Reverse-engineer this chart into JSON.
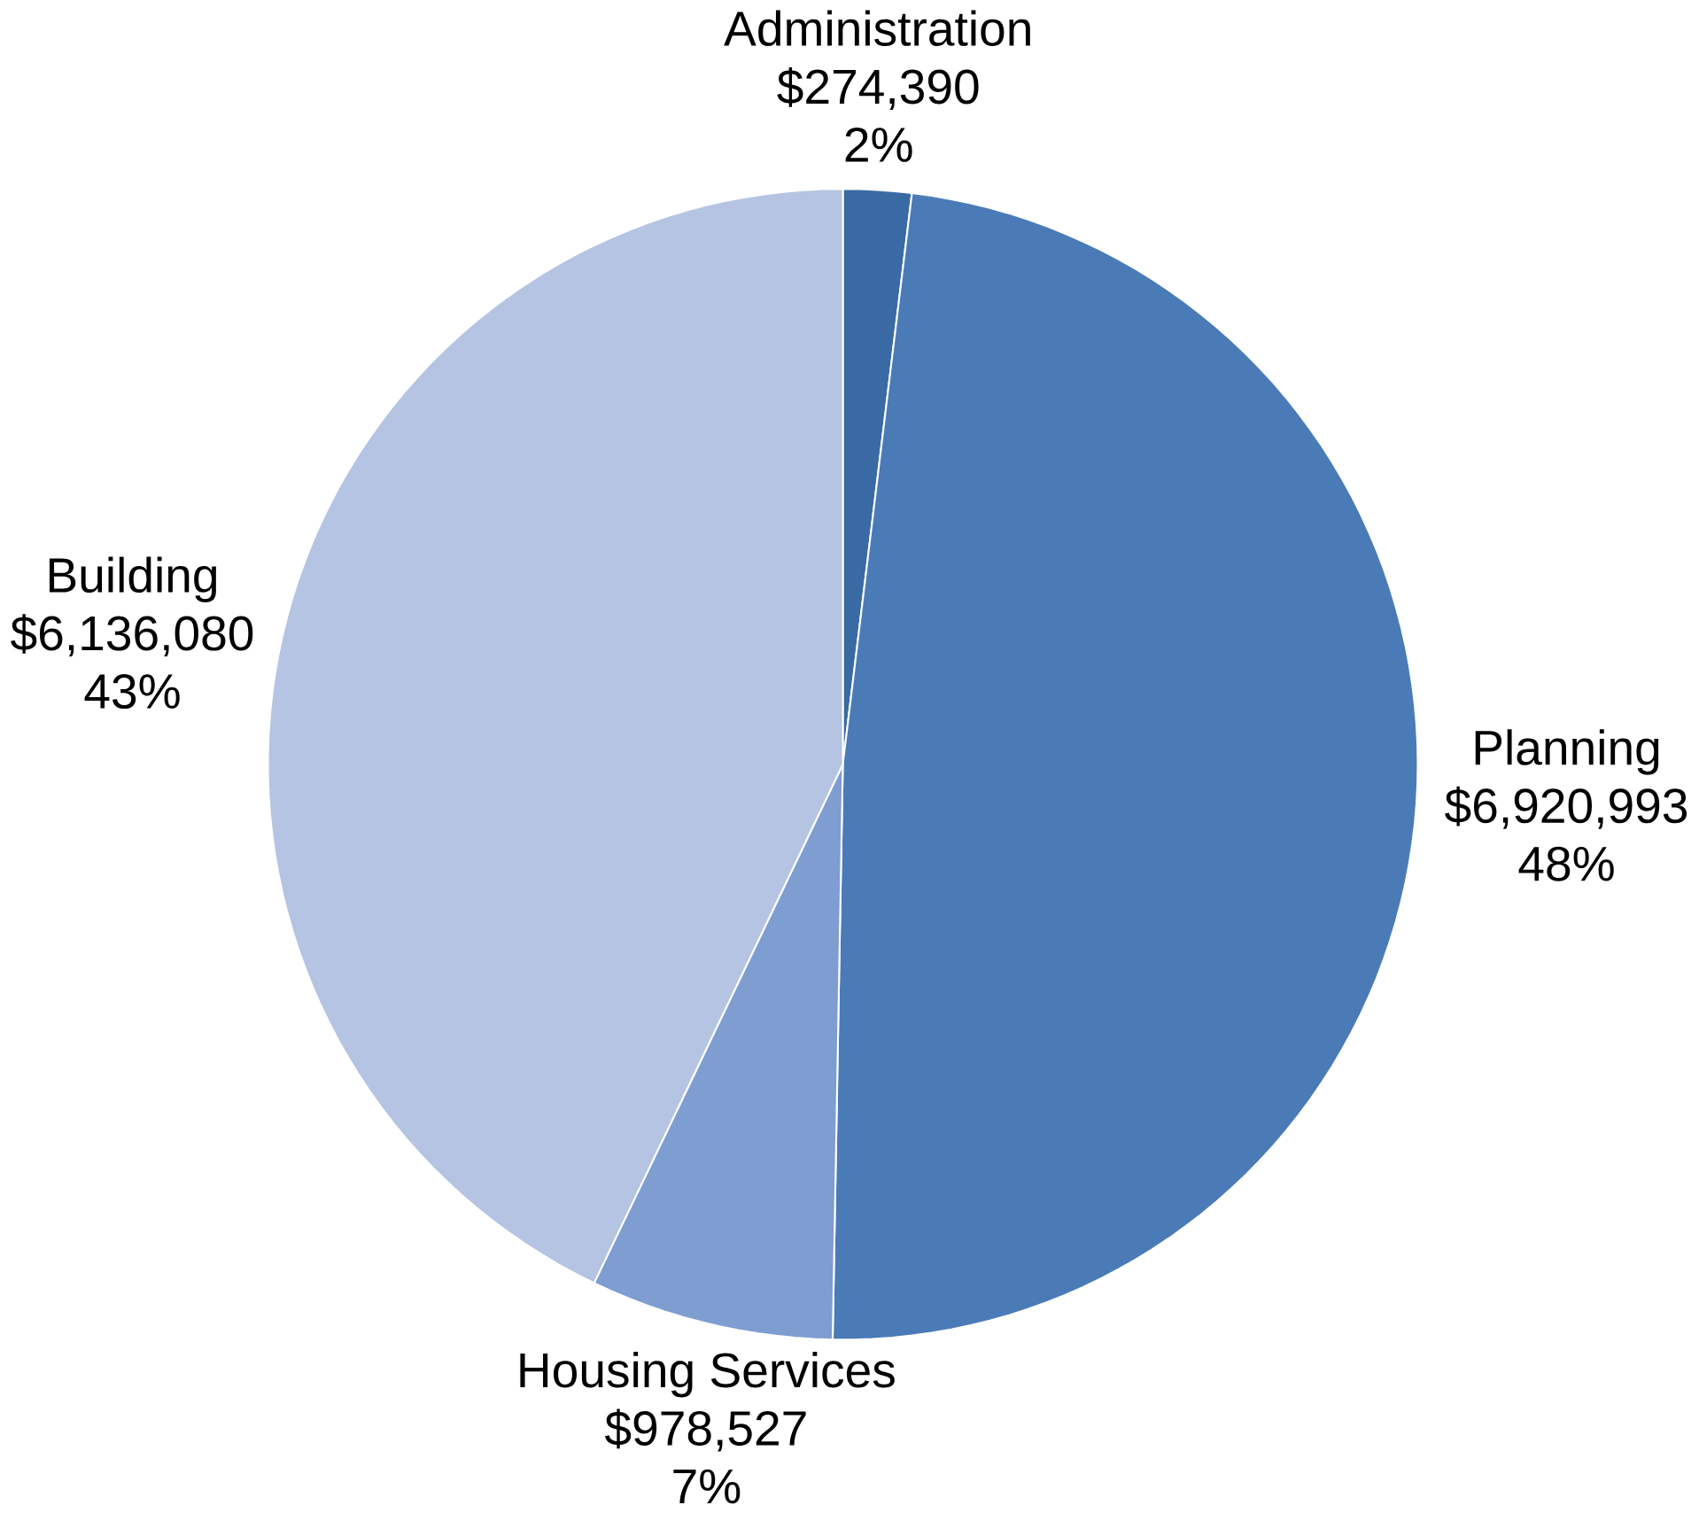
{
  "chart_data": {
    "type": "pie",
    "categories": [
      "Administration",
      "Planning",
      "Housing Services",
      "Building"
    ],
    "values": [
      274390,
      6920993,
      978527,
      6136080
    ],
    "value_labels": [
      "$274,390",
      "$6,920,993",
      "$978,527",
      "$6,136,080"
    ],
    "annotations": [
      "2%",
      "48%",
      "7%",
      "43%"
    ],
    "colors": [
      "#3a6aa3",
      "#4a7bb7",
      "#7e9dd0",
      "#b5c4e2"
    ]
  }
}
